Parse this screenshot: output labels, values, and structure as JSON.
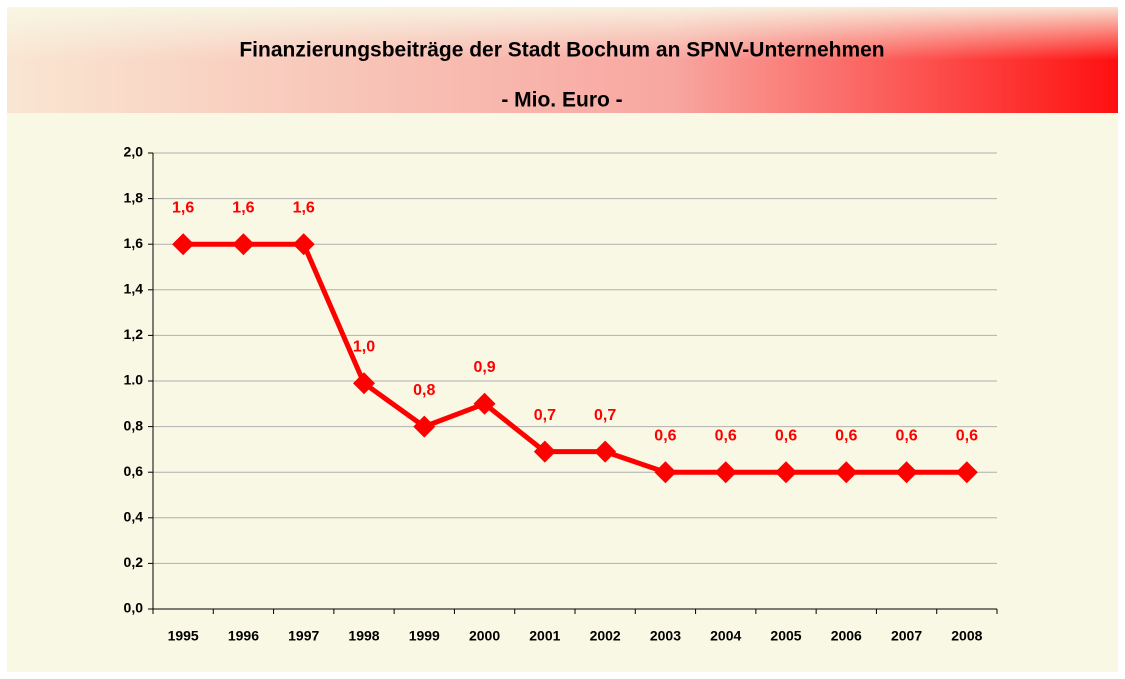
{
  "chart_data": {
    "type": "line",
    "title": "Finanzierungsbeiträge der Stadt Bochum an SPNV-Unternehmen",
    "subtitle": "- Mio. Euro -",
    "categories": [
      "1995",
      "1996",
      "1997",
      "1998",
      "1999",
      "2000",
      "2001",
      "2002",
      "2003",
      "2004",
      "2005",
      "2006",
      "2007",
      "2008"
    ],
    "values": [
      1.6,
      1.6,
      1.6,
      0.99,
      0.8,
      0.9,
      0.69,
      0.69,
      0.6,
      0.6,
      0.6,
      0.6,
      0.6,
      0.6
    ],
    "value_labels": [
      "1,6",
      "1,6",
      "1,6",
      "1,0",
      "0,8",
      "0,9",
      "0,7",
      "0,7",
      "0,6",
      "0,6",
      "0,6",
      "0,6",
      "0,6",
      "0,6"
    ],
    "color": "#ff0000",
    "ylim": [
      0,
      2
    ],
    "yticks": [
      {
        "value": 0,
        "label": "0,0"
      },
      {
        "value": 0.2,
        "label": "0,2"
      },
      {
        "value": 0.4,
        "label": "0,4"
      },
      {
        "value": 0.6,
        "label": "0,6"
      },
      {
        "value": 0.8,
        "label": "0,8"
      },
      {
        "value": 1.0,
        "label": "1.0"
      },
      {
        "value": 1.2,
        "label": "1,2"
      },
      {
        "value": 1.4,
        "label": "1,4"
      },
      {
        "value": 1.6,
        "label": "1,6"
      },
      {
        "value": 1.8,
        "label": "1,8"
      },
      {
        "value": 2.0,
        "label": "2,0"
      }
    ],
    "grid": true
  }
}
